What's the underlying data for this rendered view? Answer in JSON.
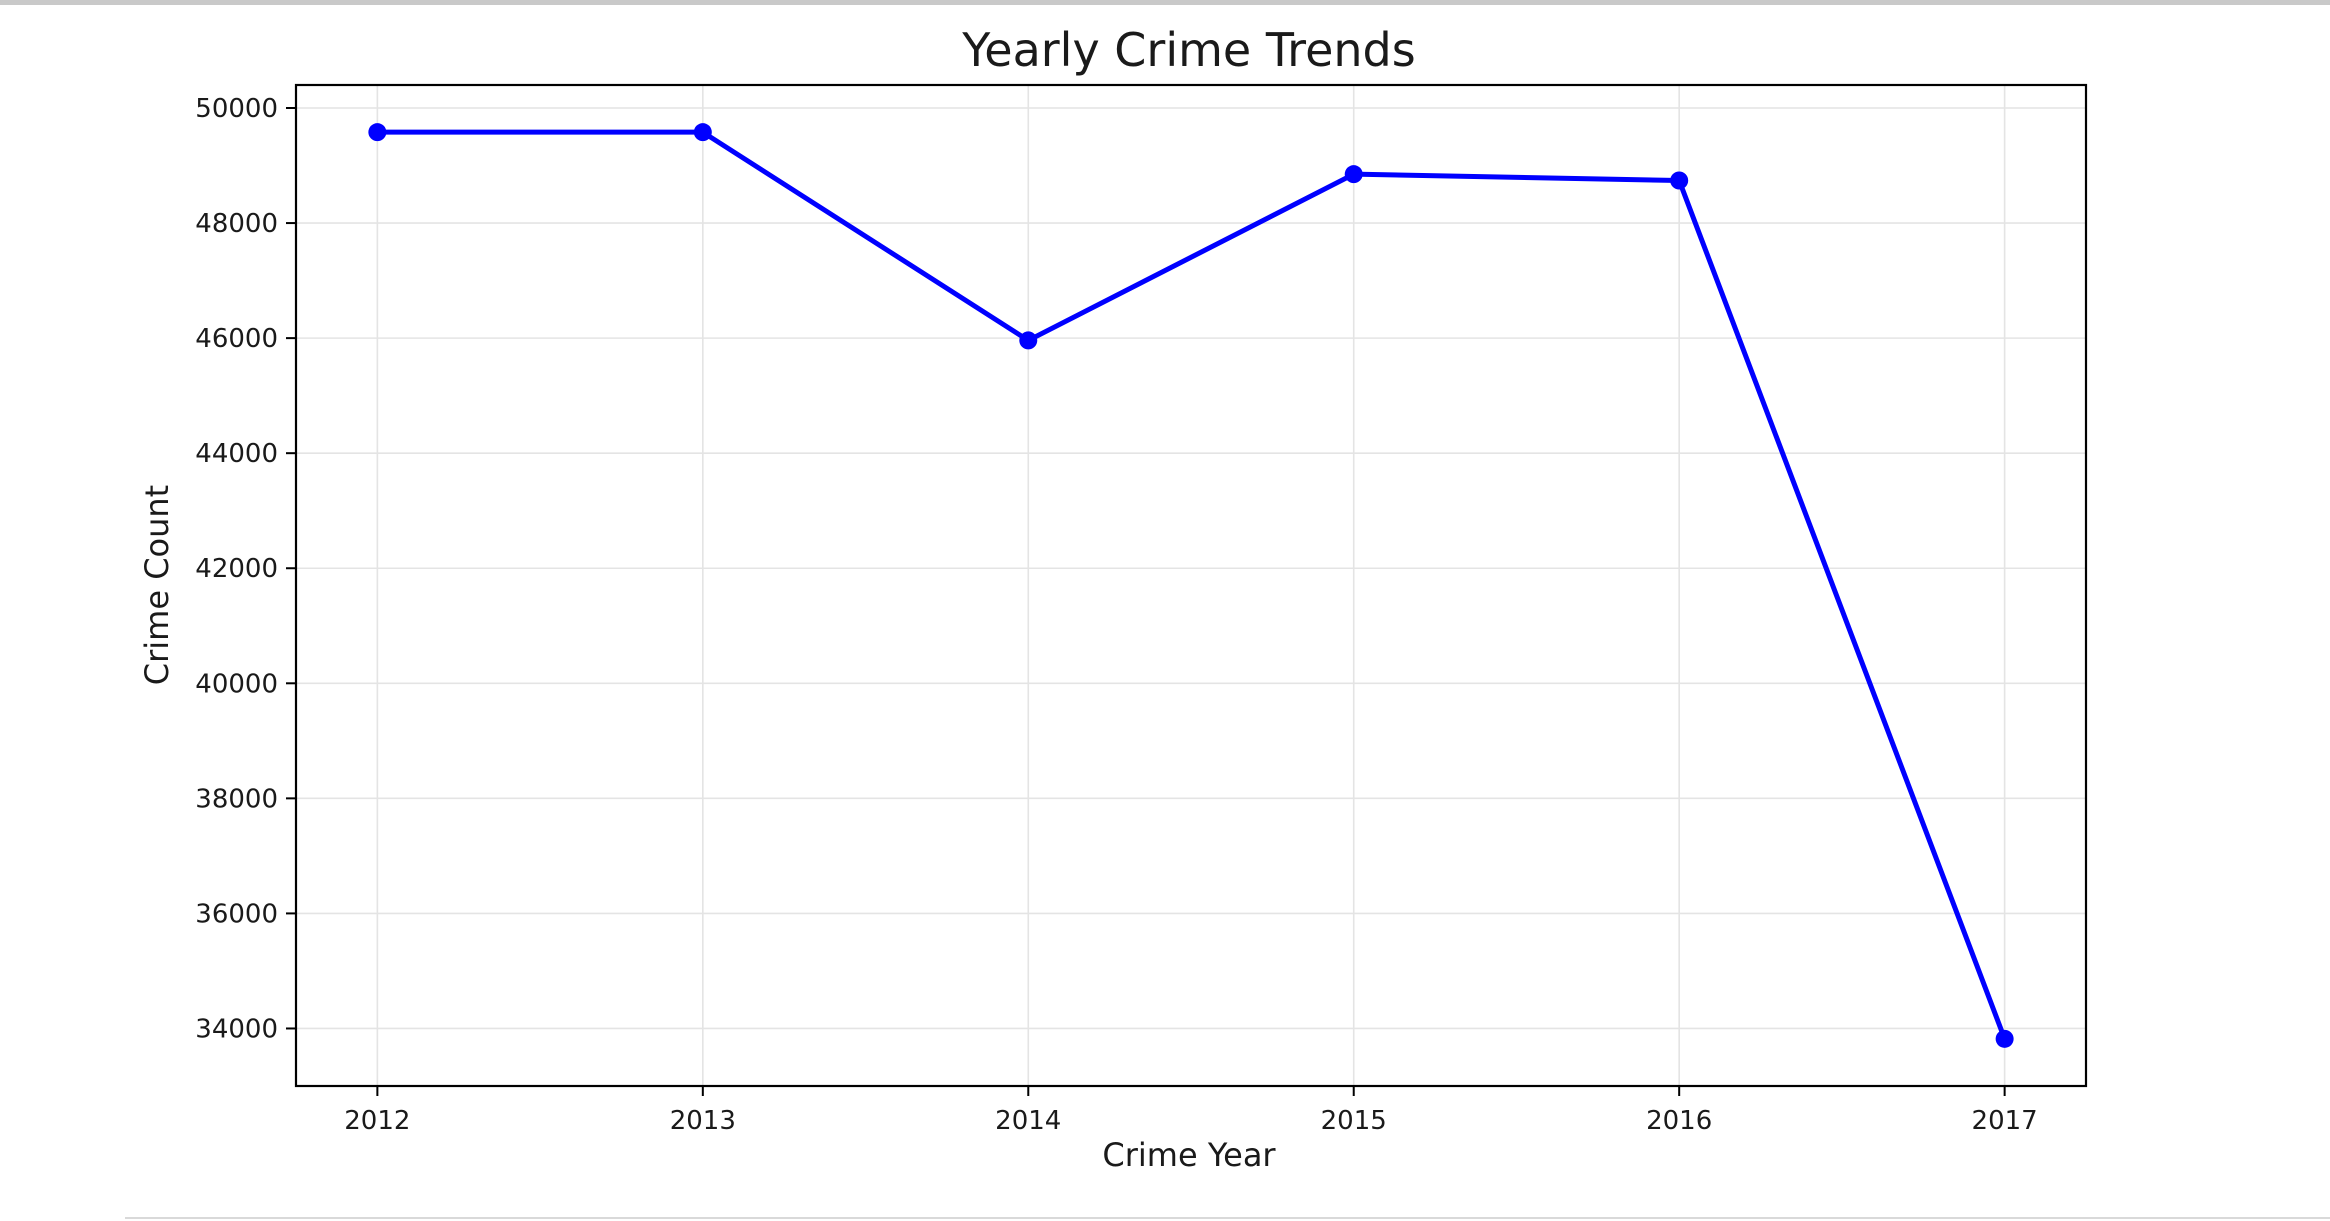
{
  "chart_data": {
    "type": "line",
    "title": "Yearly Crime Trends",
    "xlabel": "Crime Year",
    "ylabel": "Crime Count",
    "x": [
      2012,
      2013,
      2014,
      2015,
      2016,
      2017
    ],
    "series": [
      {
        "values": [
          49580,
          49580,
          45960,
          48850,
          48740,
          33820
        ],
        "color": "#0000ff",
        "marker": "circle"
      }
    ],
    "xlim": [
      2011.75,
      2017.25
    ],
    "ylim": [
      33000,
      50400
    ],
    "yticks": [
      34000,
      36000,
      38000,
      40000,
      42000,
      44000,
      46000,
      48000,
      50000
    ],
    "xticks": [
      2012,
      2013,
      2014,
      2015,
      2016,
      2017
    ],
    "grid": true,
    "legend": "none"
  }
}
